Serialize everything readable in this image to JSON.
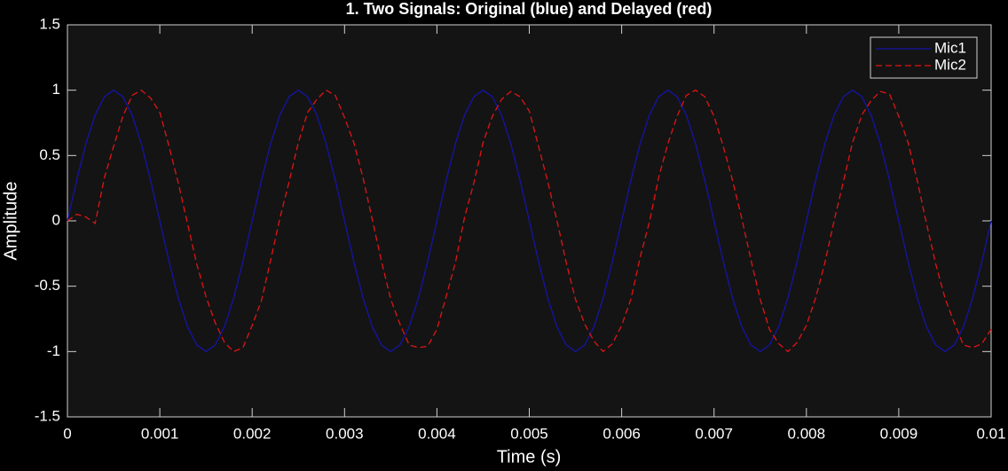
{
  "chart_data": {
    "type": "line",
    "title": "1. Two Signals: Original (blue) and Delayed (red)",
    "xlabel": "Time (s)",
    "ylabel": "Amplitude",
    "x": [
      0,
      0.0001,
      0.0002,
      0.0003,
      0.0004,
      0.0005,
      0.0006,
      0.0007,
      0.0008,
      0.0009,
      0.001,
      0.0011,
      0.0012,
      0.0013,
      0.0014,
      0.0015,
      0.0016,
      0.0017,
      0.0018,
      0.0019,
      0.002,
      0.0021,
      0.0022,
      0.0023,
      0.0024,
      0.0025,
      0.0026,
      0.0027,
      0.0028,
      0.0029,
      0.003,
      0.0031,
      0.0032,
      0.0033,
      0.0034,
      0.0035,
      0.0036,
      0.0037,
      0.0038,
      0.0039,
      0.004,
      0.0041,
      0.0042,
      0.0043,
      0.0044,
      0.0045,
      0.0046,
      0.0047,
      0.0048,
      0.0049,
      0.005,
      0.0051,
      0.0052,
      0.0053,
      0.0054,
      0.0055,
      0.0056,
      0.0057,
      0.0058,
      0.0059,
      0.006,
      0.0061,
      0.0062,
      0.0063,
      0.0064,
      0.0065,
      0.0066,
      0.0067,
      0.0068,
      0.0069,
      0.007,
      0.0071,
      0.0072,
      0.0073,
      0.0074,
      0.0075,
      0.0076,
      0.0077,
      0.0078,
      0.0079,
      0.008,
      0.0081,
      0.0082,
      0.0083,
      0.0084,
      0.0085,
      0.0086,
      0.0087,
      0.0088,
      0.0089,
      0.009,
      0.0091,
      0.0092,
      0.0093,
      0.0094,
      0.0095,
      0.0096,
      0.0097,
      0.0098,
      0.0099,
      0.01
    ],
    "series": [
      {
        "name": "Mic1",
        "color": "#1414a8",
        "dash": false,
        "values": [
          0,
          0.31,
          0.59,
          0.81,
          0.95,
          1,
          0.95,
          0.81,
          0.59,
          0.31,
          0,
          -0.31,
          -0.59,
          -0.81,
          -0.95,
          -1,
          -0.95,
          -0.81,
          -0.59,
          -0.31,
          0,
          0.31,
          0.59,
          0.81,
          0.95,
          1,
          0.95,
          0.81,
          0.59,
          0.31,
          0,
          -0.31,
          -0.59,
          -0.81,
          -0.95,
          -1,
          -0.95,
          -0.81,
          -0.59,
          -0.31,
          0,
          0.31,
          0.59,
          0.81,
          0.95,
          1,
          0.95,
          0.81,
          0.59,
          0.31,
          0,
          -0.31,
          -0.59,
          -0.81,
          -0.95,
          -1,
          -0.95,
          -0.81,
          -0.59,
          -0.31,
          0,
          0.31,
          0.59,
          0.81,
          0.95,
          1,
          0.95,
          0.81,
          0.59,
          0.31,
          0,
          -0.31,
          -0.59,
          -0.81,
          -0.95,
          -1,
          -0.95,
          -0.81,
          -0.59,
          -0.31,
          0,
          0.31,
          0.59,
          0.81,
          0.95,
          1,
          0.95,
          0.81,
          0.59,
          0.31,
          0,
          -0.31,
          -0.59,
          -0.81,
          -0.95,
          -1,
          -0.95,
          -0.81,
          -0.59,
          -0.31,
          0
        ]
      },
      {
        "name": "Mic2",
        "color": "#e01414",
        "dash": true,
        "values": [
          0,
          0.05,
          0.03,
          -0.02,
          0.33,
          0.57,
          0.8,
          0.96,
          1,
          0.94,
          0.83,
          0.57,
          0.29,
          -0.02,
          -0.33,
          -0.58,
          -0.78,
          -0.93,
          -1,
          -0.97,
          -0.8,
          -0.61,
          -0.3,
          0.02,
          0.3,
          0.6,
          0.83,
          0.93,
          1,
          0.96,
          0.79,
          0.6,
          0.33,
          0.01,
          -0.31,
          -0.6,
          -0.79,
          -0.95,
          -0.97,
          -0.96,
          -0.83,
          -0.58,
          -0.32,
          0.03,
          0.29,
          0.6,
          0.8,
          0.93,
          0.99,
          0.95,
          0.84,
          0.57,
          0.3,
          0,
          -0.32,
          -0.6,
          -0.79,
          -0.92,
          -1,
          -0.94,
          -0.8,
          -0.6,
          -0.28,
          -0.01,
          0.33,
          0.59,
          0.8,
          0.96,
          1,
          0.95,
          0.8,
          0.57,
          0.31,
          0.02,
          -0.3,
          -0.6,
          -0.83,
          -0.94,
          -1,
          -0.93,
          -0.8,
          -0.59,
          -0.32,
          0,
          0.3,
          0.6,
          0.81,
          0.92,
          0.99,
          0.97,
          0.8,
          0.6,
          0.31,
          -0.02,
          -0.33,
          -0.59,
          -0.78,
          -0.95,
          -0.97,
          -0.94,
          -0.83
        ]
      }
    ],
    "xlim": [
      0,
      0.01
    ],
    "xticks": [
      0,
      0.001,
      0.002,
      0.003,
      0.004,
      0.005,
      0.006,
      0.007,
      0.008,
      0.009,
      0.01
    ],
    "ylim": [
      -1.5,
      1.5
    ],
    "yticks": [
      -1.5,
      -1,
      -0.5,
      0,
      0.5,
      1,
      1.5
    ],
    "grid": false,
    "legend": "northeast"
  }
}
